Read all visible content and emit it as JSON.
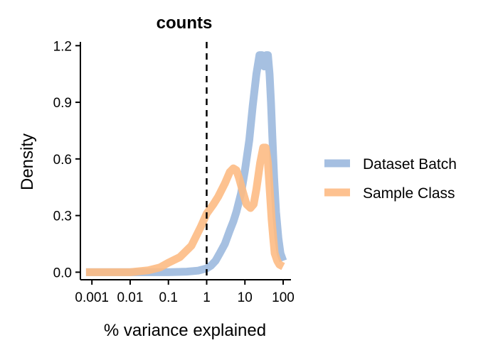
{
  "chart_data": {
    "type": "line",
    "title": "counts",
    "xlabel": "% variance explained",
    "ylabel": "Density",
    "x_scale": "log10",
    "xlim": [
      0.0005,
      160
    ],
    "ylim": [
      -0.04,
      1.22
    ],
    "x_ticks": [
      0.001,
      0.01,
      0.1,
      1,
      10,
      100
    ],
    "x_tick_labels": [
      "0.001",
      "0.01",
      "0.1",
      "1",
      "10",
      "100"
    ],
    "y_ticks": [
      0.0,
      0.3,
      0.6,
      0.9,
      1.2
    ],
    "y_tick_labels": [
      "0.0",
      "0.3",
      "0.6",
      "0.9",
      "1.2"
    ],
    "vline": {
      "x": 1,
      "style": "dashed",
      "color": "#000000"
    },
    "legend_position": "right",
    "grid": false,
    "series": [
      {
        "name": "Dataset Batch",
        "color": "#9CB9DE",
        "x": [
          0.0007,
          0.001,
          0.01,
          0.1,
          0.3,
          0.6,
          1,
          1.3,
          1.7,
          2.2,
          3,
          4,
          5,
          6,
          8,
          10,
          13,
          16,
          20,
          24,
          28,
          32,
          36,
          40,
          44,
          48,
          52,
          58,
          65,
          75,
          85,
          100
        ],
        "values": [
          0.0,
          0.0,
          0.0,
          0.0,
          0.003,
          0.008,
          0.02,
          0.035,
          0.06,
          0.1,
          0.15,
          0.22,
          0.27,
          0.32,
          0.42,
          0.54,
          0.7,
          0.88,
          1.05,
          1.15,
          1.15,
          1.09,
          1.15,
          1.15,
          1.05,
          0.9,
          0.72,
          0.5,
          0.32,
          0.18,
          0.1,
          0.06
        ]
      },
      {
        "name": "Sample Class",
        "color": "#FDBB84",
        "x": [
          0.0007,
          0.001,
          0.01,
          0.03,
          0.06,
          0.1,
          0.2,
          0.4,
          0.7,
          1,
          1.5,
          2,
          3,
          4,
          5,
          6,
          7,
          9,
          11,
          14,
          17,
          20,
          25,
          30,
          35,
          40,
          45,
          50,
          55,
          60,
          70,
          80,
          100
        ],
        "values": [
          0.0,
          0.0,
          0.0,
          0.01,
          0.025,
          0.05,
          0.08,
          0.14,
          0.24,
          0.31,
          0.36,
          0.4,
          0.47,
          0.53,
          0.55,
          0.54,
          0.5,
          0.42,
          0.36,
          0.34,
          0.36,
          0.44,
          0.58,
          0.66,
          0.66,
          0.58,
          0.42,
          0.28,
          0.18,
          0.1,
          0.06,
          0.04,
          0.03
        ]
      }
    ]
  }
}
